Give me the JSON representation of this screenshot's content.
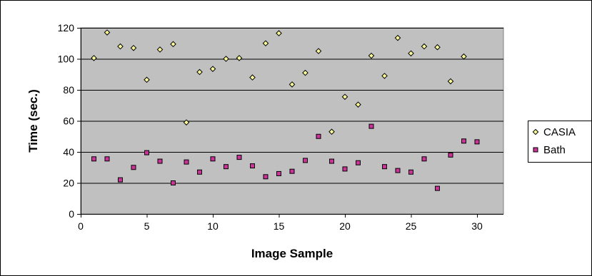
{
  "chart_data": {
    "type": "scatter",
    "title": "",
    "xlabel": "Image Sample",
    "ylabel": "Time (sec.)",
    "xlim": [
      0,
      32
    ],
    "ylim": [
      0,
      120
    ],
    "xticks": [
      0,
      5,
      10,
      15,
      20,
      25,
      30
    ],
    "yticks": [
      0,
      20,
      40,
      60,
      80,
      100,
      120
    ],
    "grid": "horizontal",
    "plot_background": "#c0c0c0",
    "legend_position": "right",
    "series": [
      {
        "name": "CASIA",
        "marker": "diamond",
        "color": "#ffff99",
        "points": [
          [
            1,
            100.5
          ],
          [
            2,
            117
          ],
          [
            3,
            108
          ],
          [
            4,
            107
          ],
          [
            5,
            86.5
          ],
          [
            6,
            106
          ],
          [
            7,
            109.5
          ],
          [
            8,
            59
          ],
          [
            9,
            91.5
          ],
          [
            10,
            93.5
          ],
          [
            11,
            100
          ],
          [
            12,
            100.5
          ],
          [
            13,
            88
          ],
          [
            14,
            110
          ],
          [
            15,
            116.5
          ],
          [
            16,
            83.5
          ],
          [
            17,
            91
          ],
          [
            18,
            105
          ],
          [
            19,
            53
          ],
          [
            20,
            75.5
          ],
          [
            21,
            70.5
          ],
          [
            22,
            102
          ],
          [
            23,
            89
          ],
          [
            24,
            113.5
          ],
          [
            25,
            103.5
          ],
          [
            26,
            108
          ],
          [
            27,
            107.5
          ],
          [
            28,
            85.5
          ],
          [
            29,
            101.5
          ]
        ]
      },
      {
        "name": "Bath",
        "marker": "square",
        "color": "#cc3399",
        "points": [
          [
            1,
            35.5
          ],
          [
            2,
            35.5
          ],
          [
            3,
            22
          ],
          [
            4,
            30
          ],
          [
            5,
            39.5
          ],
          [
            6,
            34
          ],
          [
            7,
            20
          ],
          [
            8,
            33.5
          ],
          [
            9,
            27
          ],
          [
            10,
            35.5
          ],
          [
            11,
            30.5
          ],
          [
            12,
            36.5
          ],
          [
            13,
            31
          ],
          [
            14,
            24
          ],
          [
            15,
            26
          ],
          [
            16,
            27.5
          ],
          [
            17,
            34.5
          ],
          [
            18,
            50
          ],
          [
            19,
            34
          ],
          [
            20,
            29
          ],
          [
            21,
            33
          ],
          [
            22,
            56.5
          ],
          [
            23,
            30.5
          ],
          [
            24,
            28
          ],
          [
            25,
            27
          ],
          [
            26,
            35.5
          ],
          [
            27,
            16.5
          ],
          [
            28,
            38
          ],
          [
            29,
            47
          ],
          [
            30,
            46.5
          ]
        ]
      }
    ]
  }
}
